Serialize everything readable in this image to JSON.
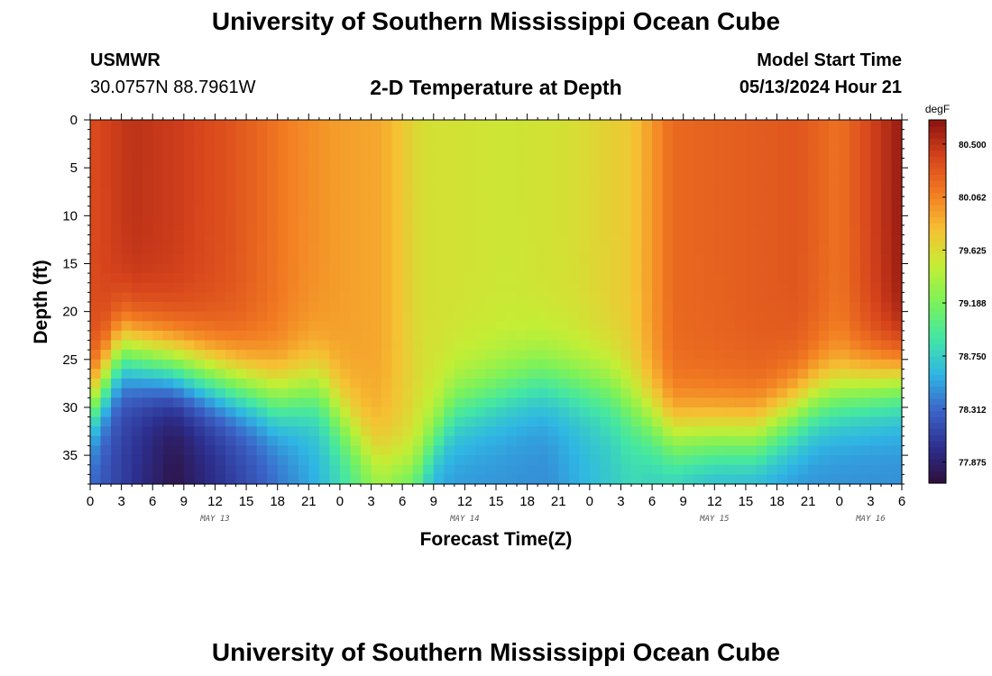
{
  "page": {
    "title_top": "University of Southern Mississippi Ocean Cube",
    "title_bottom": "University of Southern Mississippi Ocean Cube",
    "station_id": "USMWR",
    "coordinates": "30.0757N  88.7961W",
    "subtitle": "2-D Temperature at Depth",
    "model_start_label": "Model Start Time",
    "model_start_value": "05/13/2024 Hour 21"
  },
  "chart_data": {
    "type": "heatmap",
    "title": "2-D Temperature at Depth",
    "xlabel": "Forecast Time(Z)",
    "ylabel": "Depth (ft)",
    "x_range_hours": [
      0,
      78
    ],
    "x_ticks": [
      "0",
      "3",
      "6",
      "9",
      "12",
      "15",
      "18",
      "21",
      "0",
      "3",
      "6",
      "9",
      "12",
      "15",
      "18",
      "21",
      "0",
      "3",
      "6",
      "9",
      "12",
      "15",
      "18",
      "21",
      "0",
      "3",
      "6"
    ],
    "date_labels": [
      {
        "label": "MAY 13",
        "hour": 12
      },
      {
        "label": "MAY 14",
        "hour": 36
      },
      {
        "label": "MAY 15",
        "hour": 60
      },
      {
        "label": "MAY 16",
        "hour": 75
      }
    ],
    "ylim": [
      0,
      38
    ],
    "y_ticks": [
      0,
      5,
      10,
      15,
      20,
      25,
      30,
      35
    ],
    "colorbar": {
      "unit": "degF",
      "range": [
        77.7,
        80.7
      ],
      "labels": [
        "80.500",
        "80.062",
        "79.625",
        "79.188",
        "78.750",
        "78.312",
        "77.875"
      ],
      "label_values": [
        80.5,
        80.062,
        79.625,
        79.188,
        78.75,
        78.312,
        77.875
      ]
    },
    "surface_temp_profile": [
      {
        "hour": 0,
        "value": 80.35
      },
      {
        "hour": 4,
        "value": 80.5
      },
      {
        "hour": 8,
        "value": 80.45
      },
      {
        "hour": 14,
        "value": 80.3
      },
      {
        "hour": 20,
        "value": 80.05
      },
      {
        "hour": 24,
        "value": 79.95
      },
      {
        "hour": 28,
        "value": 79.9
      },
      {
        "hour": 32,
        "value": 79.6
      },
      {
        "hour": 40,
        "value": 79.55
      },
      {
        "hour": 46,
        "value": 79.6
      },
      {
        "hour": 52,
        "value": 79.75
      },
      {
        "hour": 56,
        "value": 80.2
      },
      {
        "hour": 62,
        "value": 80.25
      },
      {
        "hour": 68,
        "value": 80.3
      },
      {
        "hour": 72,
        "value": 80.15
      },
      {
        "hour": 78,
        "value": 80.65
      }
    ],
    "thermocline_depth_profile_ft": [
      {
        "hour": 0,
        "value": 30
      },
      {
        "hour": 3,
        "value": 24
      },
      {
        "hour": 6,
        "value": 25
      },
      {
        "hour": 12,
        "value": 27
      },
      {
        "hour": 18,
        "value": 29
      },
      {
        "hour": 22,
        "value": 28
      },
      {
        "hour": 27,
        "value": 35
      },
      {
        "hour": 31,
        "value": 37
      },
      {
        "hour": 35,
        "value": 30
      },
      {
        "hour": 43,
        "value": 27
      },
      {
        "hour": 50,
        "value": 28
      },
      {
        "hour": 56,
        "value": 33
      },
      {
        "hour": 64,
        "value": 33
      },
      {
        "hour": 70,
        "value": 29
      },
      {
        "hour": 78,
        "value": 27
      }
    ],
    "deep_temp_profile": [
      {
        "hour": 0,
        "value": 78.3
      },
      {
        "hour": 8,
        "value": 77.75
      },
      {
        "hour": 16,
        "value": 78.2
      },
      {
        "hour": 22,
        "value": 78.6
      },
      {
        "hour": 28,
        "value": 79.2
      },
      {
        "hour": 33,
        "value": 78.5
      },
      {
        "hour": 44,
        "value": 78.45
      },
      {
        "hour": 52,
        "value": 78.8
      },
      {
        "hour": 60,
        "value": 78.5
      },
      {
        "hour": 70,
        "value": 78.45
      },
      {
        "hour": 78,
        "value": 78.45
      }
    ],
    "transition_width_ft": 5
  },
  "colors": {
    "scale": [
      "#2e0e3a",
      "#2d2f8f",
      "#3c64c8",
      "#2fb5e4",
      "#43e6a5",
      "#7cf259",
      "#c4ee35",
      "#f6c033",
      "#f27b22",
      "#d6431c",
      "#8a1210"
    ],
    "scale_min": 77.7,
    "scale_max": 80.7
  }
}
